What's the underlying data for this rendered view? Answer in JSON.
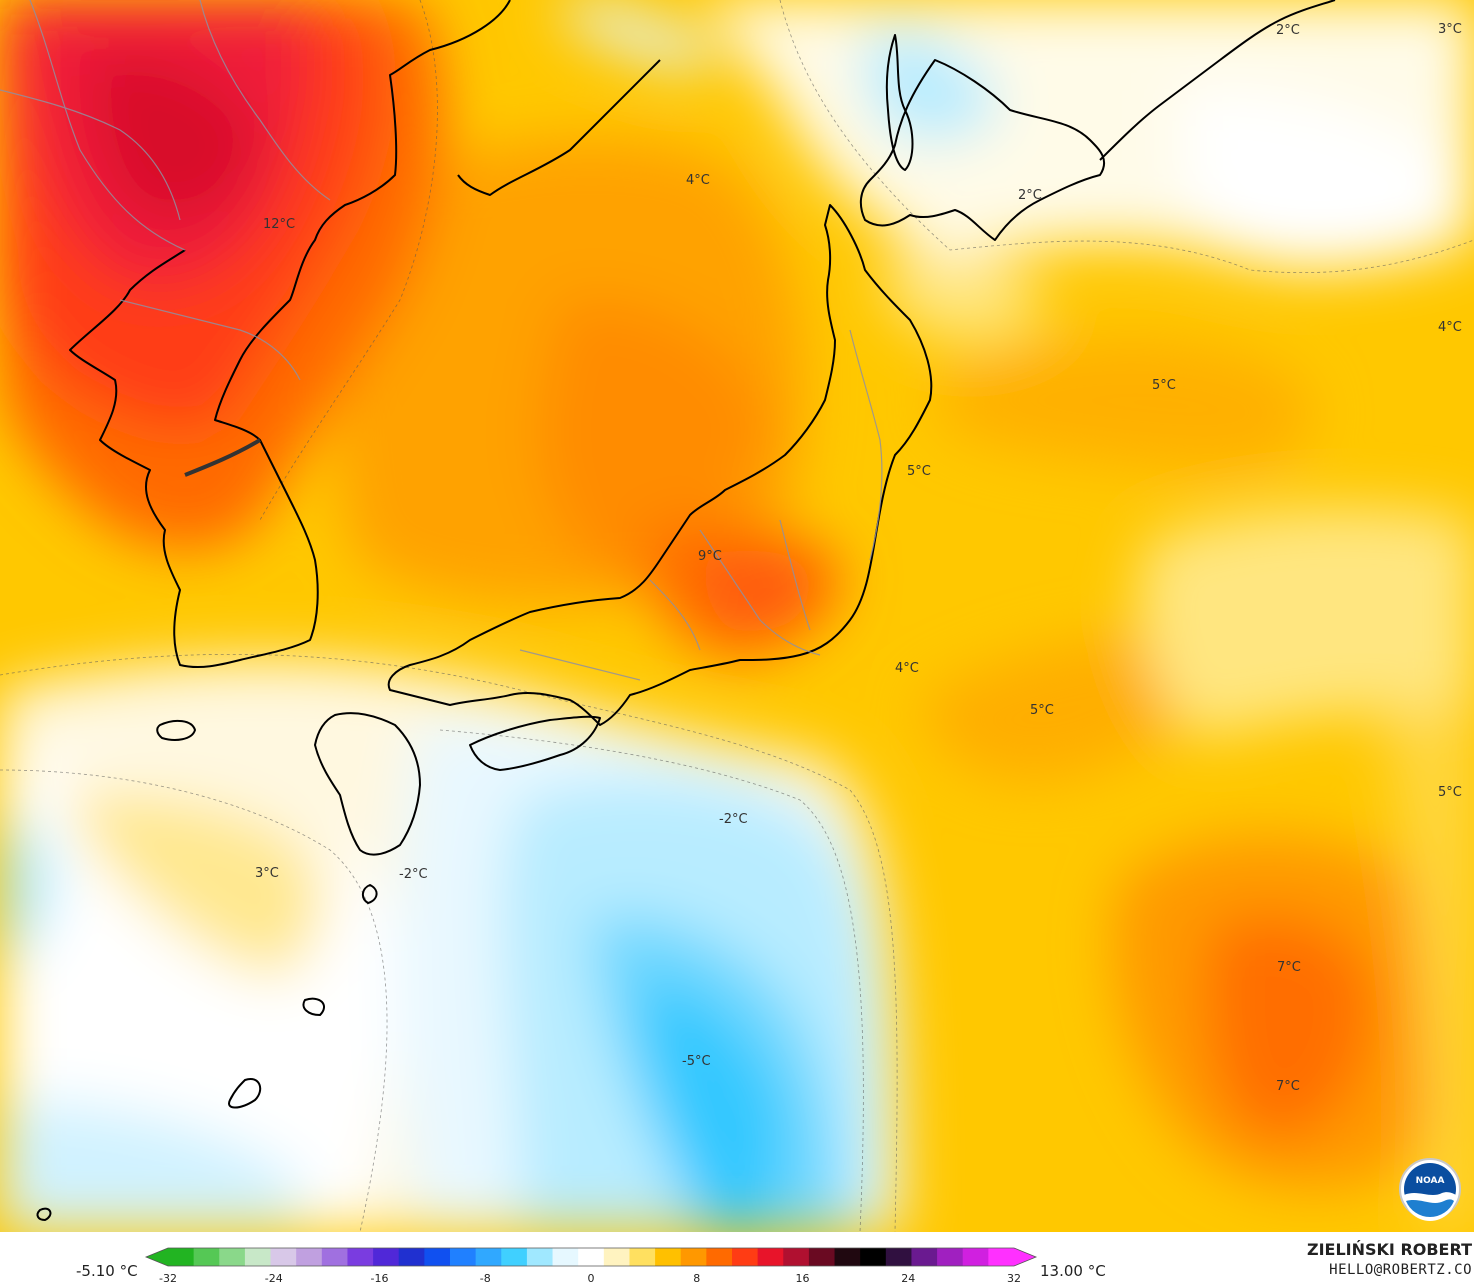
{
  "map": {
    "labels": [
      {
        "id": "korea-north",
        "text": "12°C"
      },
      {
        "id": "japan-sea-north",
        "text": "4°C"
      },
      {
        "id": "honshu-central",
        "text": "9°C"
      },
      {
        "id": "hokkaido-south",
        "text": "2°C"
      },
      {
        "id": "kuril-ne",
        "text": "2°C"
      },
      {
        "id": "corner-ne",
        "text": "3°C"
      },
      {
        "id": "pacific-east-1",
        "text": "4°C"
      },
      {
        "id": "pacific-east-2",
        "text": "5°C"
      },
      {
        "id": "tohoku-east",
        "text": "5°C"
      },
      {
        "id": "pacific-south-1",
        "text": "4°C"
      },
      {
        "id": "pacific-south-2",
        "text": "5°C"
      },
      {
        "id": "pacific-east-3",
        "text": "5°C"
      },
      {
        "id": "east-china-sea",
        "text": "3°C"
      },
      {
        "id": "kyushu-south",
        "text": "-2°C"
      },
      {
        "id": "south-of-shikoku",
        "text": "-2°C"
      },
      {
        "id": "philippine-sea",
        "text": "-5°C"
      },
      {
        "id": "se-warm-1",
        "text": "7°C"
      },
      {
        "id": "se-warm-2",
        "text": "7°C"
      }
    ]
  },
  "legend": {
    "min_label": "-5.10 °C",
    "max_label": "13.00 °C",
    "ticks": [
      "-32",
      "-24",
      "-16",
      "-8",
      "0",
      "8",
      "16",
      "24",
      "32"
    ],
    "colors": [
      "#22b422",
      "#55c855",
      "#8ad88a",
      "#c8e8c8",
      "#d8c8e8",
      "#c0a0e0",
      "#a070e0",
      "#7a3ce0",
      "#5028d8",
      "#2030d0",
      "#1050f0",
      "#2080ff",
      "#30a8ff",
      "#40d0ff",
      "#a0e8ff",
      "#e6f8ff",
      "#ffffff",
      "#fff3c0",
      "#ffe060",
      "#ffc000",
      "#ff9800",
      "#ff6a00",
      "#ff3c14",
      "#e8142a",
      "#b01030",
      "#6a0a22",
      "#200810",
      "#000000",
      "#301040",
      "#6a1a90",
      "#a020c0",
      "#d020e0",
      "#ff30ff"
    ]
  },
  "credit": {
    "name": "ZIELIŃSKI ROBERT",
    "email": "HELLO@ROBERTZ.CO",
    "logo_text": "NOAA"
  }
}
